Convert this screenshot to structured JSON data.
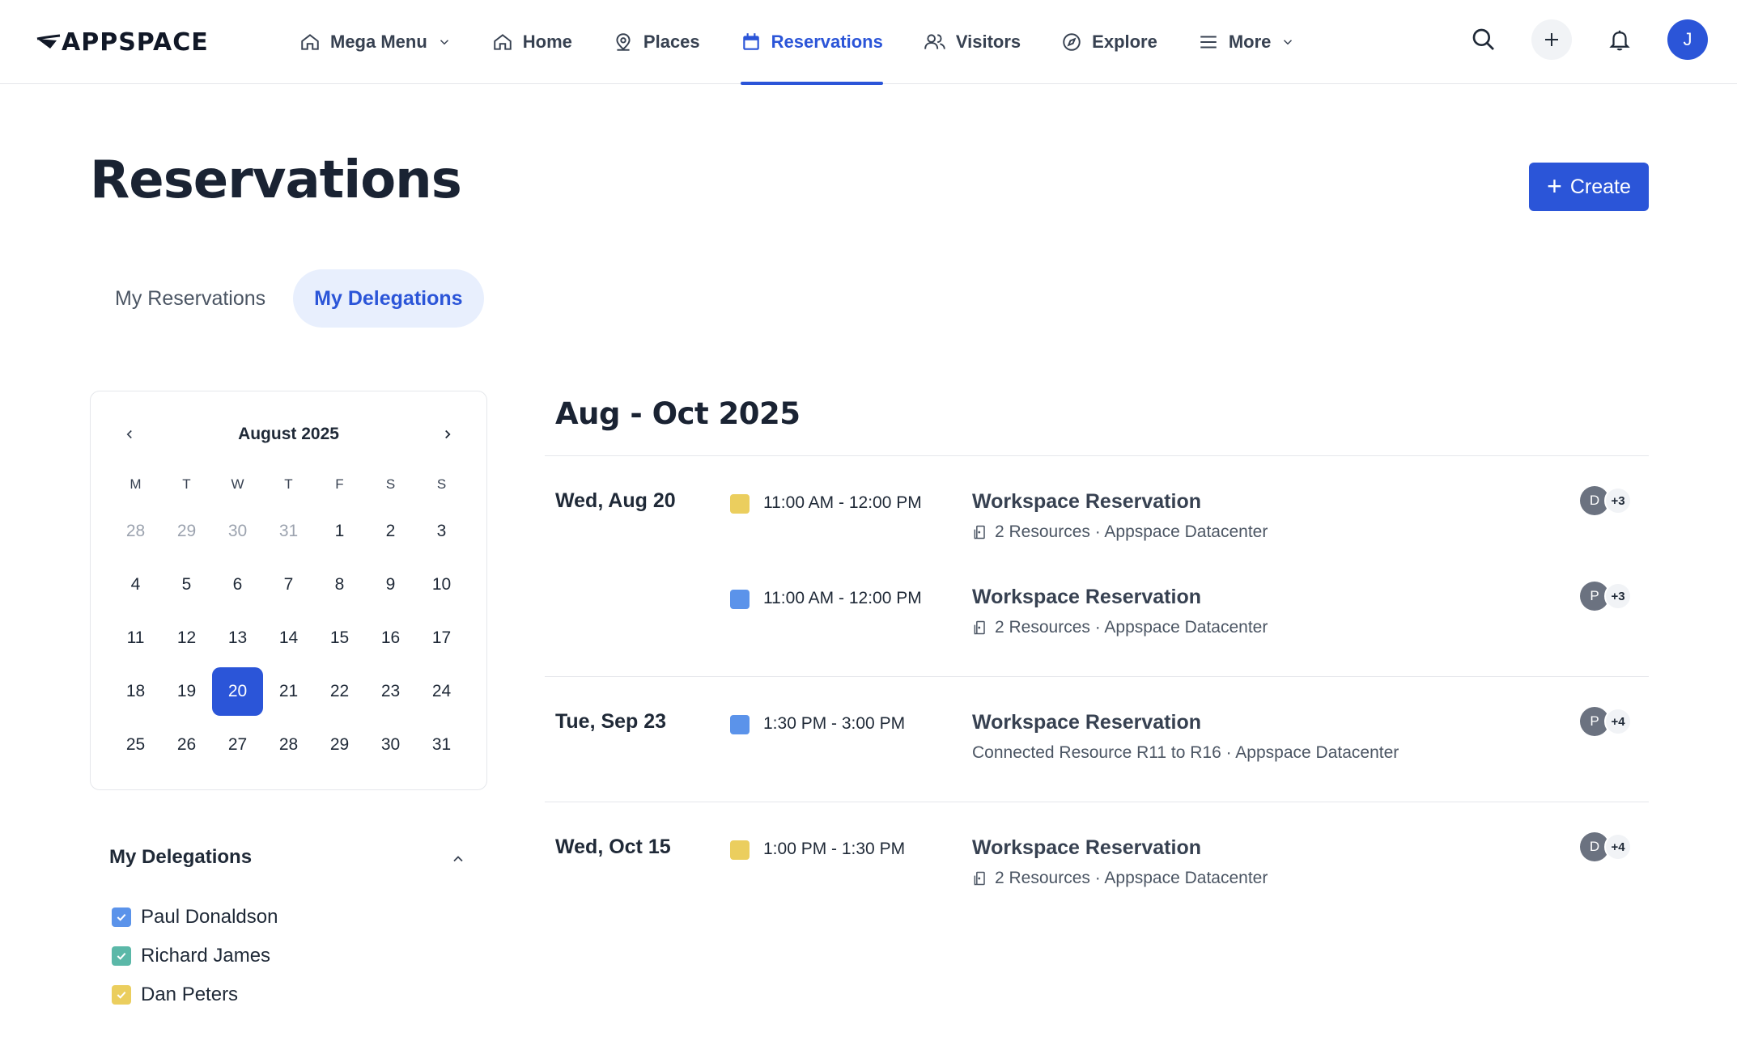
{
  "app": {
    "logo_text": "APPSPACE",
    "user_initial": "J"
  },
  "nav": {
    "items": [
      {
        "label": "Mega Menu",
        "icon": "home-icon",
        "dropdown": true
      },
      {
        "label": "Home",
        "icon": "home-icon"
      },
      {
        "label": "Places",
        "icon": "location-pin-icon"
      },
      {
        "label": "Reservations",
        "icon": "calendar-icon",
        "active": true
      },
      {
        "label": "Visitors",
        "icon": "users-icon"
      },
      {
        "label": "Explore",
        "icon": "compass-icon"
      },
      {
        "label": "More",
        "icon": "menu-icon",
        "dropdown": true
      }
    ]
  },
  "header": {
    "title": "Reservations",
    "create_label": "Create"
  },
  "tabs": [
    {
      "label": "My Reservations",
      "active": false
    },
    {
      "label": "My Delegations",
      "active": true
    }
  ],
  "calendar": {
    "month_label": "August 2025",
    "weekdays": [
      "M",
      "T",
      "W",
      "T",
      "F",
      "S",
      "S"
    ],
    "weeks": [
      [
        {
          "d": "28",
          "muted": true
        },
        {
          "d": "29",
          "muted": true
        },
        {
          "d": "30",
          "muted": true
        },
        {
          "d": "31",
          "muted": true
        },
        {
          "d": "1"
        },
        {
          "d": "2"
        },
        {
          "d": "3"
        }
      ],
      [
        {
          "d": "4"
        },
        {
          "d": "5"
        },
        {
          "d": "6"
        },
        {
          "d": "7"
        },
        {
          "d": "8"
        },
        {
          "d": "9"
        },
        {
          "d": "10"
        }
      ],
      [
        {
          "d": "11"
        },
        {
          "d": "12"
        },
        {
          "d": "13"
        },
        {
          "d": "14"
        },
        {
          "d": "15"
        },
        {
          "d": "16"
        },
        {
          "d": "17"
        }
      ],
      [
        {
          "d": "18"
        },
        {
          "d": "19"
        },
        {
          "d": "20",
          "selected": true
        },
        {
          "d": "21"
        },
        {
          "d": "22"
        },
        {
          "d": "23"
        },
        {
          "d": "24"
        }
      ],
      [
        {
          "d": "25"
        },
        {
          "d": "26"
        },
        {
          "d": "27"
        },
        {
          "d": "28"
        },
        {
          "d": "29"
        },
        {
          "d": "30"
        },
        {
          "d": "31"
        }
      ]
    ]
  },
  "delegations": {
    "title": "My Delegations",
    "people": [
      {
        "name": "Paul Donaldson",
        "color": "#5b93ea",
        "checked": true
      },
      {
        "name": "Richard James",
        "color": "#5bb8a8",
        "checked": true
      },
      {
        "name": "Dan Peters",
        "color": "#ebce5e",
        "checked": true
      }
    ]
  },
  "events": {
    "range_title": "Aug - Oct 2025",
    "groups": [
      {
        "day": "Wed, Aug 20",
        "items": [
          {
            "color": "#ebce5e",
            "time": "11:00 AM - 12:00 PM",
            "title": "Workspace Reservation",
            "subtitle": "2 Resources · Appspace Datacenter",
            "resource_icon": true,
            "avatar": "D",
            "more": "+3"
          },
          {
            "color": "#5b93ea",
            "time": "11:00 AM - 12:00 PM",
            "title": "Workspace Reservation",
            "subtitle": "2 Resources · Appspace Datacenter",
            "resource_icon": true,
            "avatar": "P",
            "more": "+3"
          }
        ]
      },
      {
        "day": "Tue, Sep 23",
        "items": [
          {
            "color": "#5b93ea",
            "time": "1:30 PM - 3:00 PM",
            "title": "Workspace Reservation",
            "subtitle": "Connected Resource R11 to R16 · Appspace Datacenter",
            "resource_icon": false,
            "avatar": "P",
            "more": "+4"
          }
        ]
      },
      {
        "day": "Wed, Oct 15",
        "items": [
          {
            "color": "#ebce5e",
            "time": "1:00 PM - 1:30 PM",
            "title": "Workspace Reservation",
            "subtitle": "2 Resources · Appspace Datacenter",
            "resource_icon": true,
            "avatar": "D",
            "more": "+4"
          }
        ]
      }
    ]
  }
}
